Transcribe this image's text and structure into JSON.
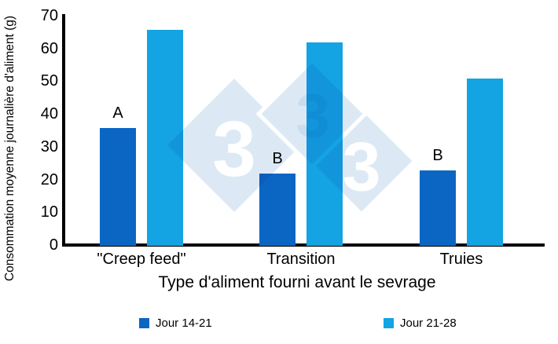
{
  "chart_data": {
    "type": "bar",
    "categories": [
      "\"Creep feed\"",
      "Transition",
      "Truies"
    ],
    "series": [
      {
        "name": "Jour 14-21",
        "color": "#0b66c3",
        "values": [
          36,
          22,
          23
        ]
      },
      {
        "name": "Jour 21-28",
        "color": "#14a3e3",
        "values": [
          66,
          62,
          51
        ]
      }
    ],
    "annotations": [
      {
        "category_index": 0,
        "series_index": 0,
        "label": "A"
      },
      {
        "category_index": 1,
        "series_index": 0,
        "label": "B"
      },
      {
        "category_index": 2,
        "series_index": 0,
        "label": "B"
      }
    ],
    "xlabel": "Type d'aliment fourni avant le sevrage",
    "ylabel": "Consommation moyenne journalière d'aliment (g)",
    "ylim": [
      0,
      70
    ],
    "ytick_step": 10,
    "ytick_labels": [
      "0",
      "10",
      "20",
      "30",
      "40",
      "50",
      "60",
      "70"
    ],
    "legend_position": "bottom",
    "grid": false,
    "axis_color": "#000000"
  },
  "watermark": {
    "name": "333-logo",
    "digits": [
      "3",
      "3",
      "3"
    ],
    "diamond_color": "#dce9f5",
    "digit_color": "#ffffff",
    "middle_digit_color": "#c8ddef"
  }
}
